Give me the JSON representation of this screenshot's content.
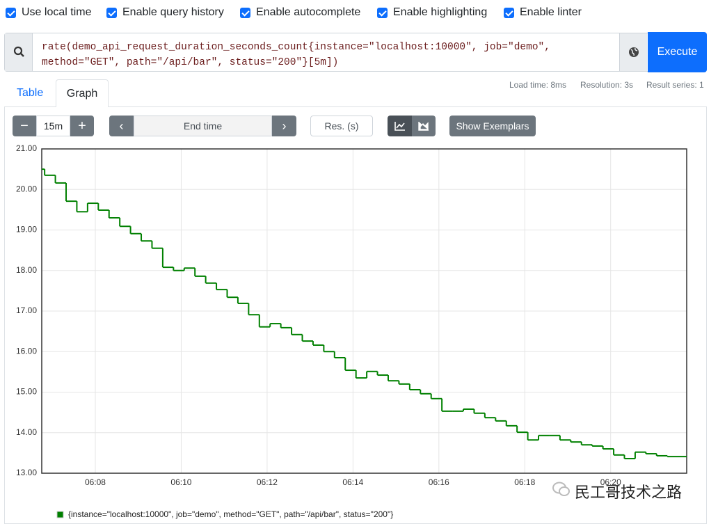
{
  "settings": {
    "checkboxes": [
      "Use local time",
      "Enable query history",
      "Enable autocomplete",
      "Enable highlighting",
      "Enable linter"
    ]
  },
  "query": {
    "lines": [
      "rate(demo_api_request_duration_seconds_count{instance=\"localhost:10000\", job=\"demo\",",
      "method=\"GET\", path=\"/api/bar\", status=\"200\"}[5m])"
    ],
    "execute": "Execute"
  },
  "tabs": [
    "Table",
    "Graph"
  ],
  "stats": [
    "Load time: 8ms",
    "Resolution: 3s",
    "Result series: 1"
  ],
  "controls": {
    "range": "15m",
    "end_time": "End time",
    "resolution": "Res. (s)",
    "exemplars": "Show Exemplars"
  },
  "chart_data": {
    "type": "line",
    "step": true,
    "grid": true,
    "x": [
      6.75,
      6.82,
      7.07,
      7.32,
      7.57,
      7.82,
      8.07,
      8.32,
      8.57,
      8.82,
      9.07,
      9.32,
      9.57,
      9.82,
      10.07,
      10.32,
      10.57,
      10.82,
      11.07,
      11.32,
      11.57,
      11.82,
      12.07,
      12.32,
      12.57,
      12.82,
      13.07,
      13.32,
      13.57,
      13.82,
      14.07,
      14.32,
      14.57,
      14.82,
      15.07,
      15.32,
      15.57,
      15.82,
      16.07,
      16.32,
      16.57,
      16.82,
      17.07,
      17.32,
      17.57,
      17.82,
      18.07,
      18.32,
      18.57,
      18.82,
      19.07,
      19.32,
      19.57,
      19.82,
      20.07,
      20.32,
      20.57,
      20.82,
      21.07,
      21.32
    ],
    "xlim": [
      6.753,
      21.77
    ],
    "xticks": [
      {
        "value": 8,
        "label": "06:08"
      },
      {
        "value": 10,
        "label": "06:10"
      },
      {
        "value": 12,
        "label": "06:12"
      },
      {
        "value": 14,
        "label": "06:14"
      },
      {
        "value": 16,
        "label": "06:16"
      },
      {
        "value": 18,
        "label": "06:18"
      },
      {
        "value": 20,
        "label": "06:20"
      }
    ],
    "ylim": [
      13,
      21
    ],
    "yticks": [
      {
        "value": 13,
        "label": "13.00"
      },
      {
        "value": 14,
        "label": "14.00"
      },
      {
        "value": 15,
        "label": "15.00"
      },
      {
        "value": 16,
        "label": "16.00"
      },
      {
        "value": 17,
        "label": "17.00"
      },
      {
        "value": 18,
        "label": "18.00"
      },
      {
        "value": 19,
        "label": "19.00"
      },
      {
        "value": 20,
        "label": "20.00"
      },
      {
        "value": 21,
        "label": "21.00"
      }
    ],
    "series": [
      {
        "name": "{instance=\"localhost:10000\", job=\"demo\", method=\"GET\", path=\"/api/bar\", status=\"200\"}",
        "color": "#008000",
        "values": [
          20.5,
          20.35,
          20.16,
          19.71,
          19.45,
          19.66,
          19.49,
          19.3,
          19.09,
          18.91,
          18.73,
          18.55,
          18.08,
          18.0,
          18.06,
          17.86,
          17.69,
          17.53,
          17.34,
          17.19,
          16.91,
          16.61,
          16.69,
          16.59,
          16.42,
          16.26,
          16.16,
          16.0,
          15.85,
          15.54,
          15.35,
          15.51,
          15.42,
          15.28,
          15.2,
          15.06,
          14.96,
          14.84,
          14.53,
          14.53,
          14.58,
          14.48,
          14.37,
          14.29,
          14.17,
          14.01,
          13.82,
          13.93,
          13.93,
          13.82,
          13.77,
          13.7,
          13.67,
          13.6,
          13.45,
          13.36,
          13.52,
          13.48,
          13.43,
          13.41
        ]
      }
    ]
  },
  "watermark": "民工哥技术之路"
}
